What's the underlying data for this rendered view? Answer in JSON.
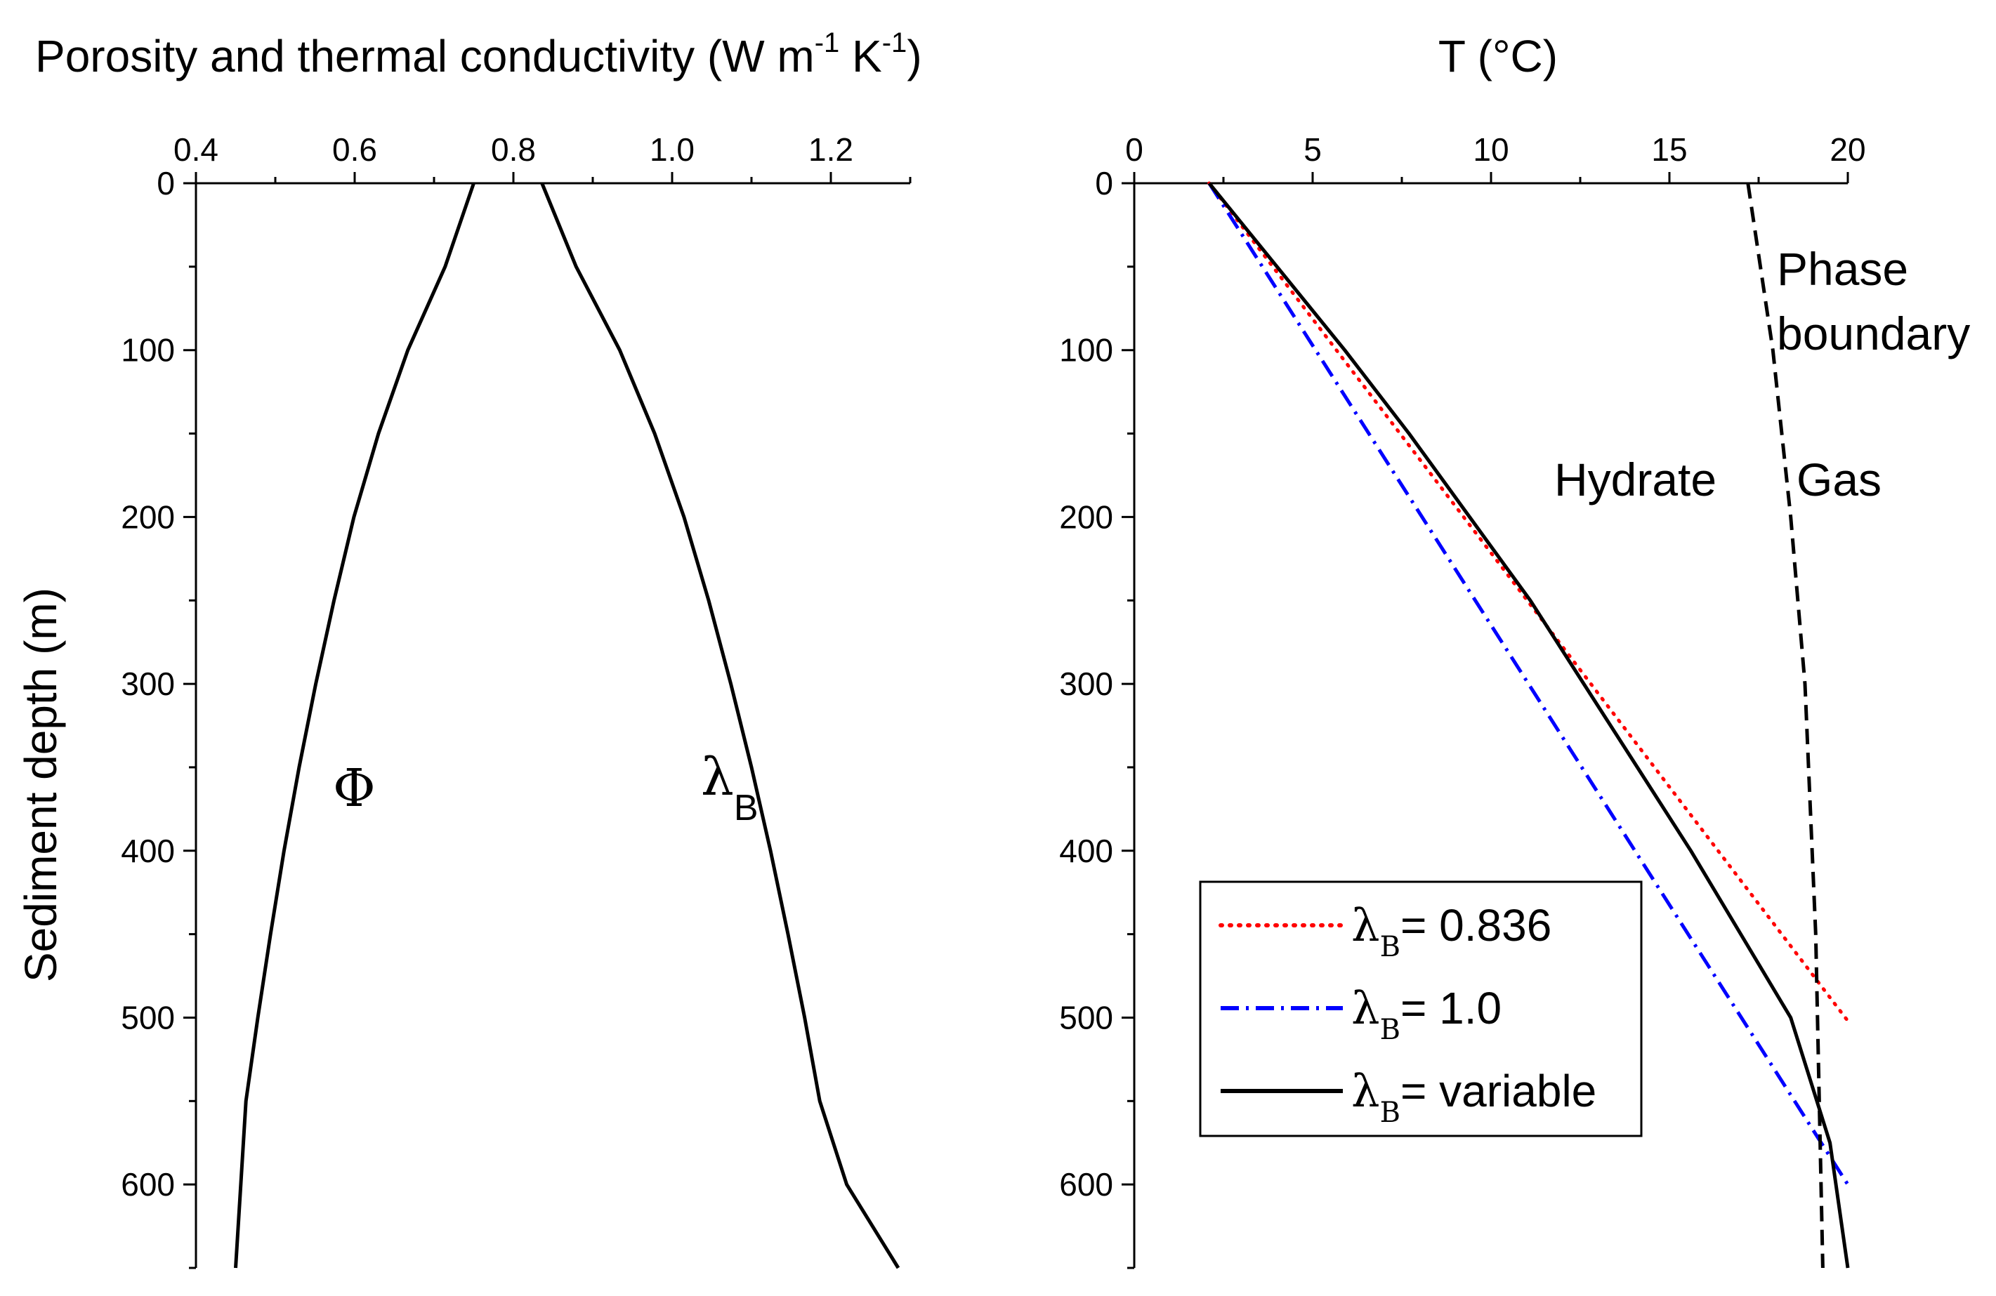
{
  "chart_data": [
    {
      "type": "line",
      "title": "Porosity and thermal conductivity (W m",
      "title_sup1": "-1",
      "title_mid": " K",
      "title_sup2": "-1",
      "title_end": ")",
      "ylabel": "Sediment depth (m)",
      "xlim": [
        0.4,
        1.3
      ],
      "ylim": [
        0,
        650
      ],
      "y_inverted": true,
      "x_axis_position": "top",
      "x_ticks": [
        "0.4",
        "0.6",
        "0.8",
        "1.0",
        "1.2"
      ],
      "x_tick_values": [
        0.4,
        0.6,
        0.8,
        1.0,
        1.2
      ],
      "y_ticks": [
        "0",
        "100",
        "200",
        "300",
        "400",
        "500",
        "600"
      ],
      "y_tick_values": [
        0,
        100,
        200,
        300,
        400,
        500,
        600
      ],
      "series": [
        {
          "name": "Φ",
          "color": "#000000",
          "style": "solid",
          "x": [
            0.75,
            0.714,
            0.667,
            0.63,
            0.599,
            0.574,
            0.551,
            0.53,
            0.511,
            0.494,
            0.478,
            0.463,
            0.45
          ],
          "y": [
            0,
            50,
            100,
            150,
            200,
            250,
            300,
            350,
            400,
            450,
            500,
            550,
            650
          ]
        },
        {
          "name": "λB",
          "label_main": "λ",
          "label_sub": "B",
          "color": "#000000",
          "style": "solid",
          "x": [
            0.836,
            0.879,
            0.934,
            0.978,
            1.015,
            1.046,
            1.074,
            1.1,
            1.124,
            1.146,
            1.167,
            1.186,
            1.22,
            1.285
          ],
          "y": [
            0,
            50,
            100,
            150,
            200,
            250,
            300,
            350,
            400,
            450,
            500,
            550,
            600,
            650
          ]
        }
      ]
    },
    {
      "type": "line",
      "title": "T (°C)",
      "xlim": [
        0,
        20
      ],
      "ylim": [
        0,
        650
      ],
      "y_inverted": true,
      "x_axis_position": "top",
      "x_ticks": [
        "0",
        "5",
        "10",
        "15",
        "20"
      ],
      "x_tick_values": [
        0,
        5,
        10,
        15,
        20
      ],
      "y_ticks": [
        "0",
        "100",
        "200",
        "300",
        "400",
        "500",
        "600"
      ],
      "y_tick_values": [
        0,
        100,
        200,
        300,
        400,
        500,
        600
      ],
      "annotations": {
        "phase_line1": "Phase",
        "phase_line2": "boundary",
        "hydrate": "Hydrate",
        "gas": "Gas"
      },
      "legend": {
        "position": "bottom-left",
        "entries": [
          {
            "main": "λ",
            "sub": "B",
            "rest": "= 0.836"
          },
          {
            "main": "λ",
            "sub": "B",
            "rest": "= 1.0"
          },
          {
            "main": "λ",
            "sub": "B",
            "rest": "= variable"
          }
        ]
      },
      "series": [
        {
          "name": "λB= 0.836",
          "color": "#ff0000",
          "style": "dotted",
          "x": [
            2.1,
            20.0
          ],
          "y": [
            0,
            502
          ]
        },
        {
          "name": "λB= 1.0",
          "color": "#0000ff",
          "style": "dashdot",
          "x": [
            2.1,
            20.0
          ],
          "y": [
            0,
            600
          ]
        },
        {
          "name": "λB= variable",
          "color": "#000000",
          "style": "solid",
          "x": [
            2.1,
            4.0,
            5.9,
            7.7,
            9.4,
            11.1,
            12.6,
            14.1,
            15.6,
            17.0,
            18.4,
            19.5,
            20.0
          ],
          "y": [
            0,
            50,
            100,
            150,
            200,
            250,
            300,
            350,
            400,
            450,
            500,
            575,
            650
          ]
        },
        {
          "name": "Phase boundary",
          "color": "#000000",
          "style": "dashed",
          "x": [
            17.2,
            17.9,
            18.4,
            18.8,
            19.1,
            19.3
          ],
          "y": [
            0,
            100,
            200,
            300,
            450,
            650
          ]
        }
      ]
    }
  ]
}
